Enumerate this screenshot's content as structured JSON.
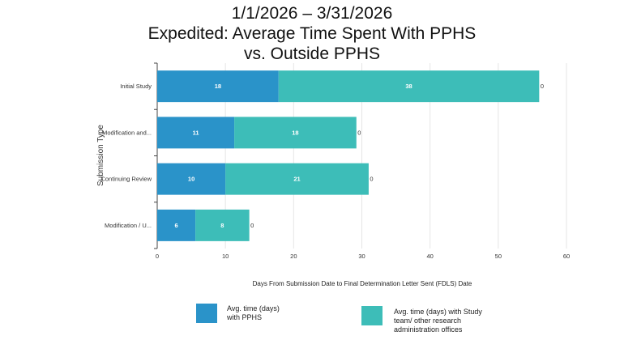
{
  "title_lines": [
    "1/1/2026 – 3/31/2026",
    "Expedited: Average Time Spent With PPHS",
    "vs. Outside PPHS"
  ],
  "chart_data": {
    "type": "bar",
    "orientation": "horizontal",
    "stacked": true,
    "categories": [
      "Initial Study",
      "Modification and...",
      "Continuing Review",
      "Modification / U..."
    ],
    "series": [
      {
        "name": "Avg. time (days) with PPHS",
        "color": "#2a93c9",
        "values": [
          17.8,
          11.3,
          10,
          5.6
        ],
        "labels": [
          "18",
          "11",
          "10",
          "6"
        ]
      },
      {
        "name": "Avg. time (days) with Study team/ other research administration offices",
        "color": "#3dbdb8",
        "values": [
          38.2,
          17.9,
          21,
          7.9
        ],
        "labels": [
          "38",
          "18",
          "21",
          "8"
        ]
      },
      {
        "values": [
          0,
          0,
          0,
          0
        ],
        "labels": [
          "0",
          "0",
          "0",
          "0"
        ]
      }
    ],
    "xlabel": "Days From Submission Date to Final Determination Letter Sent (FDLS) Date",
    "ylabel": "Submission Type",
    "xlim": [
      0,
      60
    ],
    "xticks": [
      "0",
      "10",
      "20",
      "30",
      "40",
      "50",
      "60"
    ],
    "grid": true,
    "legend": "bottom"
  },
  "legend": {
    "items": [
      {
        "label_lines": [
          "Avg. time (days)",
          "with PPHS"
        ]
      },
      {
        "label_lines": [
          "Avg. time (days) with Study",
          "team/ other research",
          "administration offices"
        ]
      }
    ]
  }
}
